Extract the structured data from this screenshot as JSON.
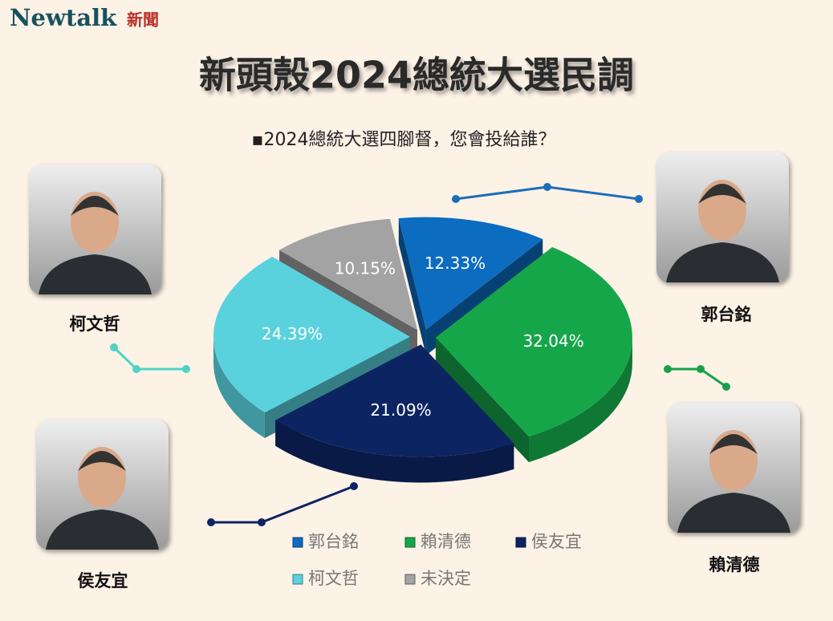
{
  "brand": "Newtalk",
  "brand_suffix": "新聞",
  "chart_data": {
    "type": "pie3d",
    "title": "新頭殼2024總統大選民調",
    "subtitle": "▪2024總統大選四腳督，您會投給誰？",
    "categories": [
      "郭台銘",
      "賴清德",
      "侯友宜",
      "柯文哲",
      "未決定"
    ],
    "values": [
      12.33,
      32.04,
      21.09,
      24.39,
      10.15
    ],
    "value_labels": [
      "12.33%",
      "32.04%",
      "21.09%",
      "24.39%",
      "10.15%"
    ],
    "colors": [
      "#0c6cc0",
      "#16a64a",
      "#0d2462",
      "#5ad2de",
      "#a3a3a3"
    ]
  }
}
